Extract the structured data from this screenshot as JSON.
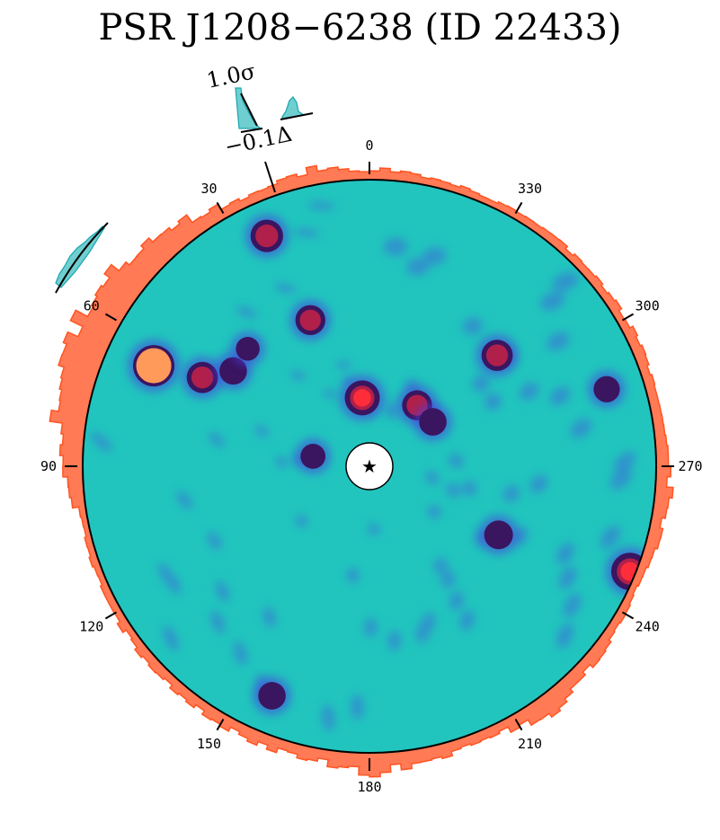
{
  "chart_data": {
    "type": "polar-heatmap",
    "title": "PSR J1208−6238 (ID 22433)",
    "colormap": "teal-blue-purple-red-orange",
    "colors": {
      "background": "#21c5be",
      "histogram_outer": "#ff7a55",
      "histogram_outer_stroke": "#ff5522",
      "histogram_inset": "#6fcfd0",
      "histogram_inset_stroke": "#1aa5b0",
      "center_marker": "#ffffff"
    },
    "angle_ticks": [
      "0",
      "30",
      "60",
      "90",
      "120",
      "150",
      "180",
      "210",
      "240",
      "270",
      "300",
      "330"
    ],
    "angle_ticks_deg": [
      0,
      30,
      60,
      90,
      120,
      150,
      180,
      210,
      240,
      270,
      300,
      330
    ],
    "angle_direction": "counterclockwise",
    "center_marker": "★",
    "inset_key": {
      "sigma_label": "1.0σ",
      "delta_label": "−0.1Δ"
    },
    "hotspots": [
      {
        "angle_deg": 24,
        "radius_frac": 0.88,
        "intensity": 0.65
      },
      {
        "angle_deg": 65,
        "radius_frac": 0.83,
        "intensity": 1.0
      },
      {
        "angle_deg": 62,
        "radius_frac": 0.66,
        "intensity": 0.6
      },
      {
        "angle_deg": 55,
        "radius_frac": 0.58,
        "intensity": 0.45
      },
      {
        "angle_deg": 22,
        "radius_frac": 0.55,
        "intensity": 0.55
      },
      {
        "angle_deg": 6,
        "radius_frac": 0.24,
        "intensity": 0.75
      },
      {
        "angle_deg": 322,
        "radius_frac": 0.27,
        "intensity": 0.55
      },
      {
        "angle_deg": 305,
        "radius_frac": 0.27,
        "intensity": 0.45
      },
      {
        "angle_deg": 311,
        "radius_frac": 0.59,
        "intensity": 0.6
      },
      {
        "angle_deg": 288,
        "radius_frac": 0.87,
        "intensity": 0.4
      },
      {
        "angle_deg": 248,
        "radius_frac": 0.98,
        "intensity": 0.85
      },
      {
        "angle_deg": 242,
        "radius_frac": 0.51,
        "intensity": 0.5
      },
      {
        "angle_deg": 157,
        "radius_frac": 0.87,
        "intensity": 0.45
      },
      {
        "angle_deg": 80,
        "radius_frac": 0.2,
        "intensity": 0.35
      },
      {
        "angle_deg": 46,
        "radius_frac": 0.59,
        "intensity": 0.3
      }
    ],
    "outer_histogram": [
      {
        "angle_deg": 0,
        "value": 0.25
      },
      {
        "angle_deg": 10,
        "value": 0.35
      },
      {
        "angle_deg": 20,
        "value": 0.2
      },
      {
        "angle_deg": 30,
        "value": 0.3
      },
      {
        "angle_deg": 40,
        "value": 0.55
      },
      {
        "angle_deg": 50,
        "value": 0.8
      },
      {
        "angle_deg": 60,
        "value": 0.9
      },
      {
        "angle_deg": 70,
        "value": 1.0
      },
      {
        "angle_deg": 80,
        "value": 0.75
      },
      {
        "angle_deg": 90,
        "value": 0.4
      },
      {
        "angle_deg": 100,
        "value": 0.15
      },
      {
        "angle_deg": 170,
        "value": 0.3
      },
      {
        "angle_deg": 180,
        "value": 0.45
      },
      {
        "angle_deg": 190,
        "value": 0.3
      },
      {
        "angle_deg": 205,
        "value": 0.2
      },
      {
        "angle_deg": 215,
        "value": 0.45
      },
      {
        "angle_deg": 225,
        "value": 0.3
      },
      {
        "angle_deg": 245,
        "value": 0.15
      },
      {
        "angle_deg": 265,
        "value": 0.35
      },
      {
        "angle_deg": 275,
        "value": 0.25
      },
      {
        "angle_deg": 335,
        "value": 0.15
      },
      {
        "angle_deg": 350,
        "value": 0.2
      }
    ]
  }
}
